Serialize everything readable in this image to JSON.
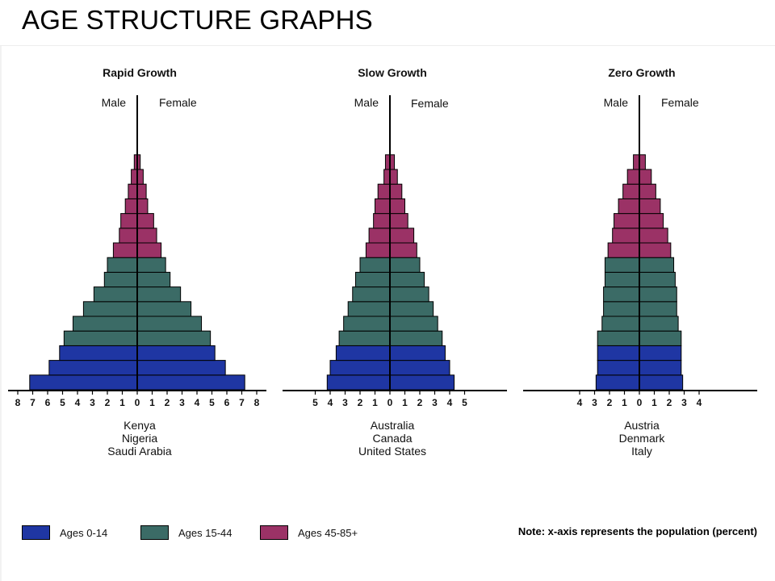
{
  "page": {
    "title": "AGE STRUCTURE GRAPHS",
    "note": "Note: x-axis represents the population (percent)"
  },
  "legend": [
    {
      "label": "Ages 0-14",
      "color": "#1f36a3"
    },
    {
      "label": "Ages 15-44",
      "color": "#3b6b66"
    },
    {
      "label": "Ages 45-85+",
      "color": "#9b3266"
    }
  ],
  "chart_data": [
    {
      "type": "bar",
      "orientation": "population-pyramid",
      "title": "Rapid Growth",
      "side_labels": [
        "Male",
        "Female"
      ],
      "xlim": [
        -8,
        8
      ],
      "x_ticks": [
        "8",
        "7",
        "6",
        "5",
        "4",
        "3",
        "2",
        "1",
        "0",
        "1",
        "2",
        "3",
        "4",
        "5",
        "6",
        "7",
        "8"
      ],
      "countries": [
        "Kenya",
        "Nigeria",
        "Saudi Arabia"
      ],
      "age_groups_bottom_to_top": [
        "0-14",
        "0-14",
        "0-14",
        "15-44",
        "15-44",
        "15-44",
        "15-44",
        "15-44",
        "15-44",
        "45-85+",
        "45-85+",
        "45-85+",
        "45-85+",
        "45-85+",
        "45-85+",
        "45-85+"
      ],
      "male": [
        7.2,
        5.9,
        5.2,
        4.9,
        4.3,
        3.6,
        2.9,
        2.2,
        2.0,
        1.6,
        1.2,
        1.1,
        0.8,
        0.6,
        0.4,
        0.2
      ],
      "female": [
        7.2,
        5.9,
        5.2,
        4.9,
        4.3,
        3.6,
        2.9,
        2.2,
        1.9,
        1.6,
        1.3,
        1.1,
        0.7,
        0.6,
        0.4,
        0.2
      ]
    },
    {
      "type": "bar",
      "orientation": "population-pyramid",
      "title": "Slow Growth",
      "side_labels": [
        "Male",
        "Female"
      ],
      "xlim": [
        -5,
        5
      ],
      "x_ticks": [
        "5",
        "4",
        "3",
        "2",
        "1",
        "0",
        "1",
        "2",
        "3",
        "4",
        "5"
      ],
      "countries": [
        "Australia",
        "Canada",
        "United States"
      ],
      "age_groups_bottom_to_top": [
        "0-14",
        "0-14",
        "0-14",
        "15-44",
        "15-44",
        "15-44",
        "15-44",
        "15-44",
        "15-44",
        "45-85+",
        "45-85+",
        "45-85+",
        "45-85+",
        "45-85+",
        "45-85+",
        "45-85+"
      ],
      "male": [
        4.2,
        4.0,
        3.6,
        3.4,
        3.1,
        2.8,
        2.5,
        2.3,
        2.0,
        1.6,
        1.4,
        1.1,
        1.0,
        0.8,
        0.4,
        0.3
      ],
      "female": [
        4.3,
        4.0,
        3.7,
        3.5,
        3.2,
        2.9,
        2.6,
        2.3,
        2.0,
        1.8,
        1.6,
        1.2,
        1.0,
        0.8,
        0.5,
        0.3
      ]
    },
    {
      "type": "bar",
      "orientation": "population-pyramid",
      "title": "Zero Growth",
      "side_labels": [
        "Male",
        "Female"
      ],
      "xlim": [
        -4,
        4
      ],
      "x_ticks": [
        "4",
        "3",
        "2",
        "1",
        "0",
        "1",
        "2",
        "3",
        "4"
      ],
      "countries": [
        "Austria",
        "Denmark",
        "Italy"
      ],
      "age_groups_bottom_to_top": [
        "0-14",
        "0-14",
        "0-14",
        "15-44",
        "15-44",
        "15-44",
        "15-44",
        "15-44",
        "15-44",
        "45-85+",
        "45-85+",
        "45-85+",
        "45-85+",
        "45-85+",
        "45-85+",
        "45-85+"
      ],
      "male": [
        2.9,
        2.8,
        2.8,
        2.8,
        2.5,
        2.4,
        2.4,
        2.3,
        2.3,
        2.1,
        1.8,
        1.7,
        1.4,
        1.1,
        0.8,
        0.4
      ],
      "female": [
        2.9,
        2.8,
        2.8,
        2.8,
        2.6,
        2.5,
        2.5,
        2.4,
        2.3,
        2.1,
        1.9,
        1.6,
        1.4,
        1.1,
        0.8,
        0.4
      ]
    }
  ]
}
